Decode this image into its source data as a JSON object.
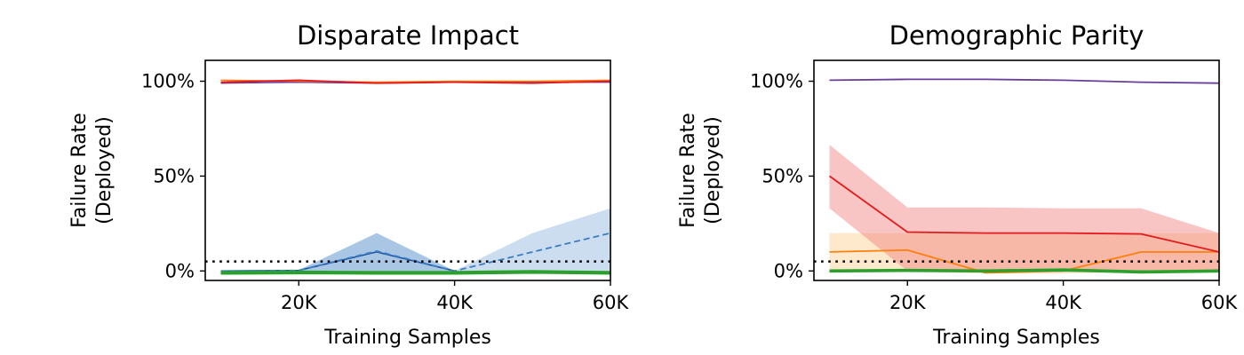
{
  "chart_data": [
    {
      "type": "line",
      "title": "Disparate Impact",
      "xlabel": "Training Samples",
      "ylabel": [
        "Failure Rate",
        "(Deployed)"
      ],
      "xlim": [
        8000,
        60000
      ],
      "ylim": [
        -5,
        111
      ],
      "xticks": [
        {
          "value": 20000,
          "label": "20K"
        },
        {
          "value": 40000,
          "label": "40K"
        },
        {
          "value": 60000,
          "label": "60K"
        }
      ],
      "yticks": [
        {
          "value": 0,
          "label": "0%"
        },
        {
          "value": 50,
          "label": "50%"
        },
        {
          "value": 100,
          "label": "100%"
        }
      ],
      "threshold": 5,
      "grid": false,
      "series": [
        {
          "color": "#6a3d9a",
          "dash": "solid",
          "width": 1.6,
          "x": [
            10000,
            20000,
            30000,
            40000,
            50000,
            60000
          ],
          "values": [
            99,
            99.5,
            99,
            99.5,
            99.5,
            99.5
          ]
        },
        {
          "color": "#ff7f0e",
          "dash": "solid",
          "width": 1.6,
          "x": [
            10000,
            20000,
            30000,
            40000,
            50000,
            60000
          ],
          "values": [
            100.5,
            100,
            99.5,
            100,
            100,
            100.5
          ]
        },
        {
          "color": "#e31a1c",
          "dash": "solid",
          "width": 1.8,
          "x": [
            10000,
            20000,
            30000,
            40000,
            50000,
            60000
          ],
          "values": [
            99.5,
            100.5,
            99,
            99.5,
            99,
            100
          ]
        },
        {
          "color": "#1f4e9c",
          "dash": "solid",
          "width": 1.6,
          "x": [
            10000,
            20000,
            30000,
            40000
          ],
          "values": [
            0,
            0.3,
            10,
            0
          ],
          "band_low": [
            0,
            0,
            0,
            0
          ],
          "band_high": [
            0,
            0.5,
            20,
            0
          ],
          "band_color": "#6a9fd2",
          "band_opacity": 0.35
        },
        {
          "color": "#3a7fc4",
          "dash": "dashed",
          "width": 1.8,
          "x": [
            10000,
            20000,
            30000,
            40000,
            50000,
            60000
          ],
          "values": [
            0,
            0.3,
            10.5,
            0,
            10,
            20
          ],
          "band_low": [
            0,
            0,
            0,
            0,
            0,
            0
          ],
          "band_high": [
            0,
            0.5,
            20,
            0,
            20,
            33
          ],
          "band_color": "#6a9fd2",
          "band_opacity": 0.35
        },
        {
          "color": "#2ca02c",
          "dash": "solid",
          "width": 4.2,
          "x": [
            10000,
            20000,
            30000,
            40000,
            50000,
            60000
          ],
          "values": [
            -1,
            -0.8,
            -1,
            -1,
            -0.5,
            -1
          ]
        }
      ]
    },
    {
      "type": "line",
      "title": "Demographic Parity",
      "xlabel": "Training Samples",
      "ylabel": [
        "Failure Rate",
        "(Deployed)"
      ],
      "xlim": [
        8000,
        60000
      ],
      "ylim": [
        -5,
        111
      ],
      "xticks": [
        {
          "value": 20000,
          "label": "20K"
        },
        {
          "value": 40000,
          "label": "40K"
        },
        {
          "value": 60000,
          "label": "60K"
        }
      ],
      "yticks": [
        {
          "value": 0,
          "label": "0%"
        },
        {
          "value": 50,
          "label": "50%"
        },
        {
          "value": 100,
          "label": "100%"
        }
      ],
      "threshold": 5,
      "grid": false,
      "series": [
        {
          "color": "#6a3d9a",
          "dash": "solid",
          "width": 1.8,
          "x": [
            10000,
            20000,
            30000,
            40000,
            50000,
            60000
          ],
          "values": [
            100.5,
            101,
            101,
            100.5,
            99.5,
            99
          ]
        },
        {
          "color": "#ff7f0e",
          "dash": "solid",
          "width": 1.8,
          "x": [
            10000,
            20000,
            30000,
            40000,
            50000,
            60000
          ],
          "values": [
            10,
            11,
            -1,
            0,
            10,
            10
          ],
          "band_low": [
            0,
            0,
            -1.5,
            -1.5,
            0,
            0
          ],
          "band_high": [
            20,
            20,
            20,
            20,
            20,
            20
          ],
          "band_color": "#fdbf6f",
          "band_opacity": 0.35
        },
        {
          "color": "#e31a1c",
          "dash": "solid",
          "width": 1.8,
          "x": [
            10000,
            20000,
            30000,
            40000,
            50000,
            60000
          ],
          "values": [
            50,
            20.5,
            20,
            20,
            19.5,
            10
          ],
          "band_low": [
            33,
            0,
            0,
            0,
            0,
            0
          ],
          "band_high": [
            66.5,
            33.5,
            33.5,
            33,
            33,
            20
          ],
          "band_color": "#ef7d7d",
          "band_opacity": 0.45
        },
        {
          "color": "#1f77b4",
          "dash": "solid",
          "width": 1.6,
          "x": [
            10000,
            20000,
            30000,
            40000,
            50000,
            60000
          ],
          "values": [
            0,
            0,
            0,
            0,
            0,
            0
          ]
        },
        {
          "color": "#2ca02c",
          "dash": "solid",
          "width": 3.6,
          "x": [
            10000,
            20000,
            30000,
            40000,
            50000,
            60000
          ],
          "values": [
            0,
            0.3,
            0,
            0.5,
            -0.5,
            0
          ]
        }
      ]
    }
  ]
}
